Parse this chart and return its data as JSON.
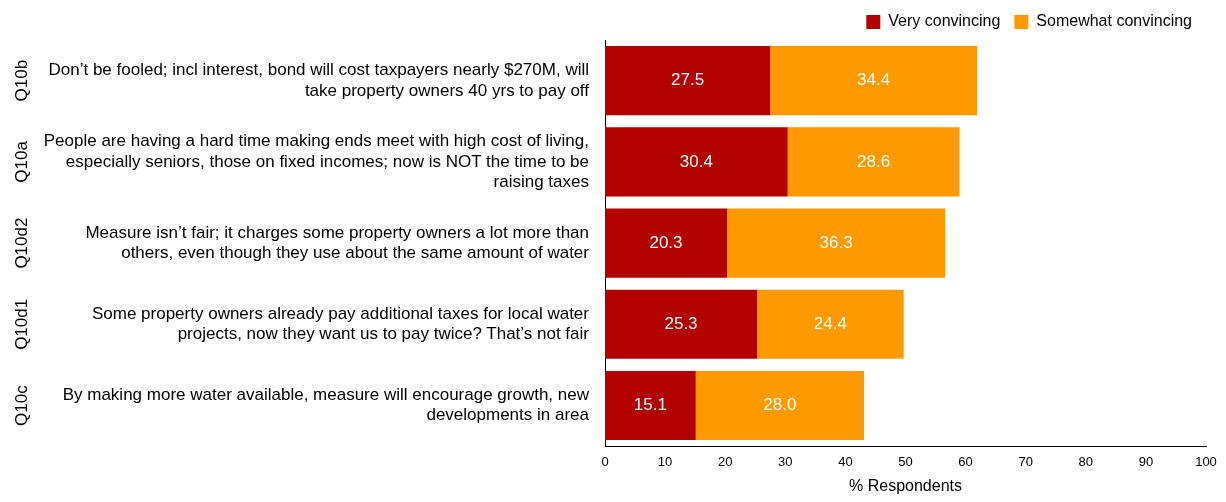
{
  "chart_data": {
    "type": "bar",
    "orientation": "horizontal",
    "stacked": true,
    "xlabel": "% Respondents",
    "categories": [
      "Don’t be fooled; incl interest, bond will cost taxpayers nearly $270M, will take property owners 40 yrs to pay off",
      "People are having a hard time making ends meet with high cost of living, especially seniors, those on fixed incomes; now is NOT the time to be raising taxes",
      "Measure isn’t fair; it charges some property owners a lot more than others, even though they use about the same amount of water",
      "Some property owners already pay additional taxes for local water projects, now they want us to pay twice? That’s not fair",
      "By making more water available, measure will encourage growth, new developments in area"
    ],
    "series": [
      {
        "name": "Very convincing",
        "color": "#b30000",
        "values": [
          27.5,
          30.4,
          20.3,
          25.3,
          15.1
        ],
        "value_labels": [
          "27.5",
          "30.4",
          "20.3",
          "25.3",
          "15.1"
        ]
      },
      {
        "name": "Somewhat convincing",
        "color": "#ff9900",
        "values": [
          34.4,
          28.6,
          36.3,
          24.4,
          28.0
        ],
        "value_labels": [
          "34.4",
          "28.6",
          "36.3",
          "24.4",
          "28.0"
        ]
      }
    ],
    "xlim": [
      0,
      100
    ],
    "xticks": [
      0,
      10,
      20,
      30,
      40,
      50,
      60,
      70,
      80,
      90,
      100
    ],
    "grid": false,
    "legend": "top right",
    "annotations": [
      "Q10b",
      "Q10a",
      "Q10d2",
      "Q10d1",
      "Q10c"
    ]
  }
}
